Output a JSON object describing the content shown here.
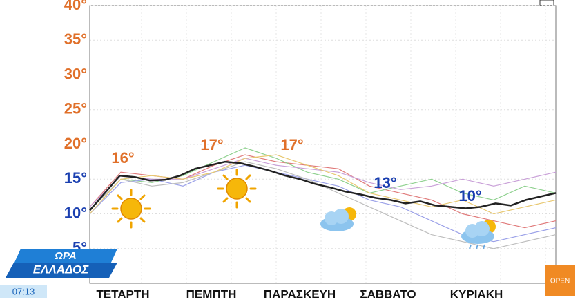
{
  "chart_data": {
    "type": "line",
    "ylim": [
      0,
      40
    ],
    "yticks": [
      {
        "value": 5,
        "label": "5°"
      },
      {
        "value": 10,
        "label": "10°"
      },
      {
        "value": 15,
        "label": "15°"
      },
      {
        "value": 20,
        "label": "20°"
      },
      {
        "value": 25,
        "label": "25°"
      },
      {
        "value": 30,
        "label": "30°"
      },
      {
        "value": 35,
        "label": "35°"
      },
      {
        "value": 40,
        "label": "40°"
      }
    ],
    "ytick_colors": [
      "#1a3fb0",
      "#1a3fb0",
      "#1a3fb0",
      "#e0702a",
      "#e0702a",
      "#e0702a",
      "#e0702a",
      "#e0702a"
    ],
    "grid": true,
    "x_labels": [
      "ΤΕΤΑΡΤΗ",
      "ΠΕΜΠΤΗ",
      "ΠΑΡΑΣΚΕΥΗ",
      "ΣΑΒΒΑΤΟ",
      "ΚΥΡΙΑΚΗ"
    ],
    "series": [
      {
        "color": "#e07a7a",
        "values": [
          11,
          16,
          15.5,
          15,
          17,
          18.5,
          17.5,
          17,
          16.5,
          14,
          13,
          12,
          10,
          9,
          8,
          9
        ]
      },
      {
        "color": "#8fd18f",
        "values": [
          10.5,
          15,
          14.5,
          15.5,
          17.5,
          19.5,
          18,
          16,
          15,
          13,
          14,
          15,
          13,
          12,
          14,
          13
        ]
      },
      {
        "color": "#9aa0e8",
        "values": [
          10,
          14.5,
          15,
          14,
          16,
          17,
          16,
          15,
          14,
          12,
          11,
          9,
          7,
          6,
          7,
          8
        ]
      },
      {
        "color": "#c9a0d8",
        "values": [
          11,
          15.5,
          15,
          15,
          16.5,
          18,
          17,
          16.5,
          16,
          14.5,
          13.5,
          14,
          15,
          14,
          15,
          16
        ]
      },
      {
        "color": "#bdbdbd",
        "values": [
          10.5,
          15,
          14,
          14.5,
          16,
          17.5,
          16.5,
          15,
          13,
          11,
          9,
          7,
          6,
          5,
          6,
          7
        ]
      },
      {
        "color": "#e8c870",
        "values": [
          10,
          15,
          15.5,
          15,
          16,
          18,
          18.5,
          17,
          15.5,
          13,
          12,
          11,
          12,
          10,
          11,
          12
        ]
      },
      {
        "color": "#222222",
        "values": [
          10.5,
          13,
          15.5,
          15.3,
          14.8,
          14.9,
          15.5,
          16.5,
          17,
          17.5,
          17.3,
          16.8,
          16.2,
          15.5,
          15,
          14.3,
          13.8,
          13.2,
          12.8,
          12.3,
          12,
          11.5,
          11.8,
          11.2,
          11,
          10.8,
          11,
          11.5,
          11.2,
          12,
          12.5,
          13
        ]
      }
    ],
    "annotations": [
      {
        "text": "16°",
        "color": "#e0702a"
      },
      {
        "text": "17°",
        "color": "#e0702a"
      },
      {
        "text": "17°",
        "color": "#e0702a"
      },
      {
        "text": "13°",
        "color": "#1a3fb0"
      },
      {
        "text": "10°",
        "color": "#1a3fb0"
      }
    ]
  },
  "overlay": {
    "show_line1": "ΩΡΑ",
    "show_line2": "ΕΛΛΑΔΟΣ",
    "time": "07:13",
    "channel": "OPEN"
  }
}
